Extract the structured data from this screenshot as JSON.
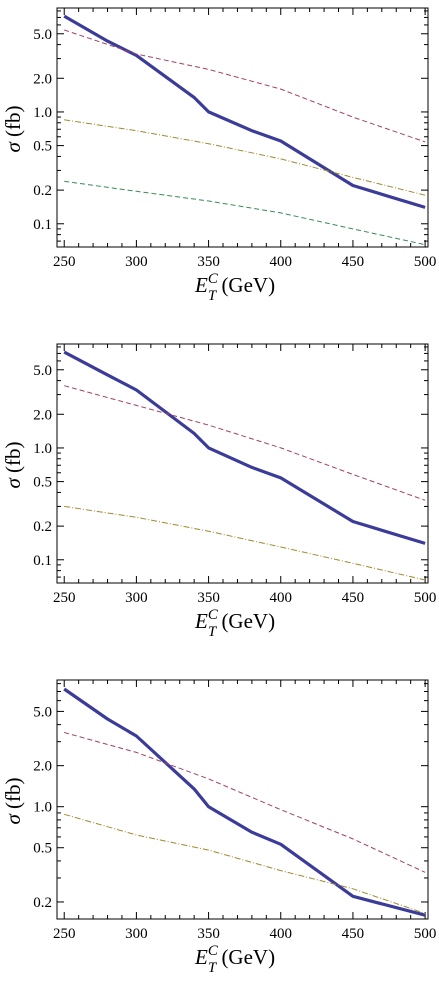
{
  "chart_data": [
    {
      "type": "line",
      "y_scale": "log",
      "xlim": [
        245,
        502
      ],
      "ylim": [
        0.062,
        8.5
      ],
      "xticks": [
        250,
        300,
        350,
        400,
        450,
        500
      ],
      "yticks": [
        0.1,
        0.2,
        0.5,
        1.0,
        2.0,
        5.0
      ],
      "ytick_labels": [
        "0.1",
        "0.2",
        "0.5",
        "1.0",
        "2.0",
        "5.0"
      ],
      "xlabel": {
        "main": "E",
        "sup": "C",
        "sub": "T",
        "unit": " (GeV)"
      },
      "ylabel": {
        "sym": "σ",
        "unit": " (fb)"
      },
      "series": [
        {
          "style": "solid",
          "color": "#3b3b9a",
          "x": [
            250,
            280,
            300,
            340,
            350,
            380,
            400,
            450,
            500
          ],
          "y": [
            7.2,
            4.3,
            3.2,
            1.35,
            1.0,
            0.68,
            0.55,
            0.22,
            0.14
          ]
        },
        {
          "style": "dashed",
          "color": "#a0406a",
          "x": [
            250,
            300,
            350,
            400,
            450,
            500
          ],
          "y": [
            5.4,
            3.3,
            2.4,
            1.6,
            0.9,
            0.54
          ]
        },
        {
          "style": "dashdot",
          "color": "#a08a30",
          "x": [
            250,
            300,
            350,
            400,
            450,
            500
          ],
          "y": [
            0.85,
            0.68,
            0.52,
            0.38,
            0.26,
            0.18
          ]
        },
        {
          "style": "dashed",
          "color": "#3a8a58",
          "x": [
            250,
            300,
            350,
            400,
            450,
            500
          ],
          "y": [
            0.24,
            0.195,
            0.16,
            0.125,
            0.09,
            0.065
          ]
        }
      ]
    },
    {
      "type": "line",
      "y_scale": "log",
      "xlim": [
        245,
        502
      ],
      "ylim": [
        0.062,
        8.5
      ],
      "xticks": [
        250,
        300,
        350,
        400,
        450,
        500
      ],
      "yticks": [
        0.1,
        0.2,
        0.5,
        1.0,
        2.0,
        5.0
      ],
      "ytick_labels": [
        "0.1",
        "0.2",
        "0.5",
        "1.0",
        "2.0",
        "5.0"
      ],
      "xlabel": {
        "main": "E",
        "sup": "C",
        "sub": "T",
        "unit": " (GeV)"
      },
      "ylabel": {
        "sym": "σ",
        "unit": " (fb)"
      },
      "series": [
        {
          "style": "solid",
          "color": "#3b3b9a",
          "x": [
            250,
            280,
            300,
            340,
            350,
            380,
            400,
            450,
            500
          ],
          "y": [
            7.2,
            4.5,
            3.3,
            1.35,
            1.0,
            0.67,
            0.54,
            0.22,
            0.14
          ]
        },
        {
          "style": "dashed",
          "color": "#a0406a",
          "x": [
            250,
            300,
            350,
            400,
            450,
            500
          ],
          "y": [
            3.6,
            2.4,
            1.6,
            1.0,
            0.58,
            0.34
          ]
        },
        {
          "style": "dashdot",
          "color": "#a08a30",
          "x": [
            250,
            300,
            350,
            400,
            450,
            500
          ],
          "y": [
            0.3,
            0.24,
            0.18,
            0.13,
            0.093,
            0.066
          ]
        }
      ]
    },
    {
      "type": "line",
      "y_scale": "log",
      "xlim": [
        245,
        502
      ],
      "ylim": [
        0.15,
        8.5
      ],
      "xticks": [
        250,
        300,
        350,
        400,
        450,
        500
      ],
      "yticks": [
        0.2,
        0.5,
        1.0,
        2.0,
        5.0
      ],
      "ytick_labels": [
        "0.2",
        "0.5",
        "1.0",
        "2.0",
        "5.0"
      ],
      "xlabel": {
        "main": "E",
        "sup": "C",
        "sub": "T",
        "unit": " (GeV)"
      },
      "ylabel": {
        "sym": "σ",
        "unit": " (fb)"
      },
      "series": [
        {
          "style": "solid",
          "color": "#3b3b9a",
          "x": [
            250,
            280,
            300,
            340,
            350,
            380,
            400,
            450,
            500
          ],
          "y": [
            7.3,
            4.4,
            3.3,
            1.35,
            1.0,
            0.65,
            0.53,
            0.22,
            0.16
          ]
        },
        {
          "style": "dashed",
          "color": "#a0406a",
          "x": [
            250,
            300,
            350,
            400,
            450,
            500
          ],
          "y": [
            3.5,
            2.5,
            1.6,
            0.95,
            0.58,
            0.33
          ]
        },
        {
          "style": "dashdot",
          "color": "#a08a30",
          "x": [
            250,
            300,
            350,
            400,
            450,
            500
          ],
          "y": [
            0.88,
            0.62,
            0.48,
            0.34,
            0.25,
            0.165
          ]
        }
      ]
    }
  ]
}
